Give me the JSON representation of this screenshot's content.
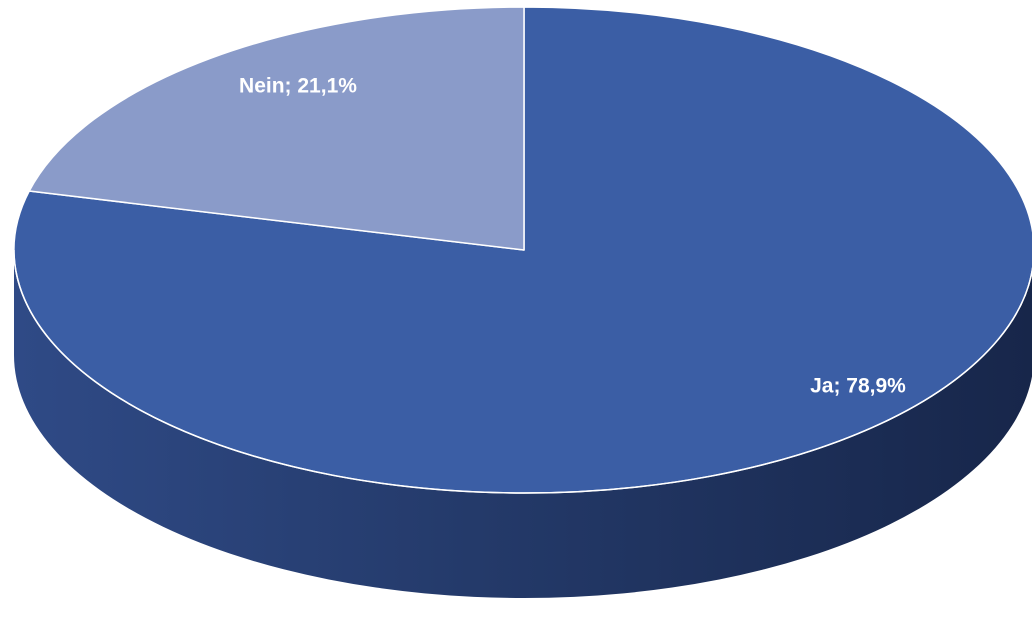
{
  "chart_data": {
    "type": "pie",
    "style": "3d",
    "title": "",
    "slices": [
      {
        "label": "Ja",
        "value": 78.9,
        "data_label": "Ja; 78,9%",
        "color": "#3B5EA5"
      },
      {
        "label": "Nein",
        "value": 21.1,
        "data_label": "Nein; 21,1%",
        "color": "#8A9BC9"
      }
    ],
    "legend": "none"
  },
  "colors": {
    "background": "#FFFFFF",
    "slice_edge": "#FFFFFF",
    "label_text": "#FFFFFF"
  }
}
